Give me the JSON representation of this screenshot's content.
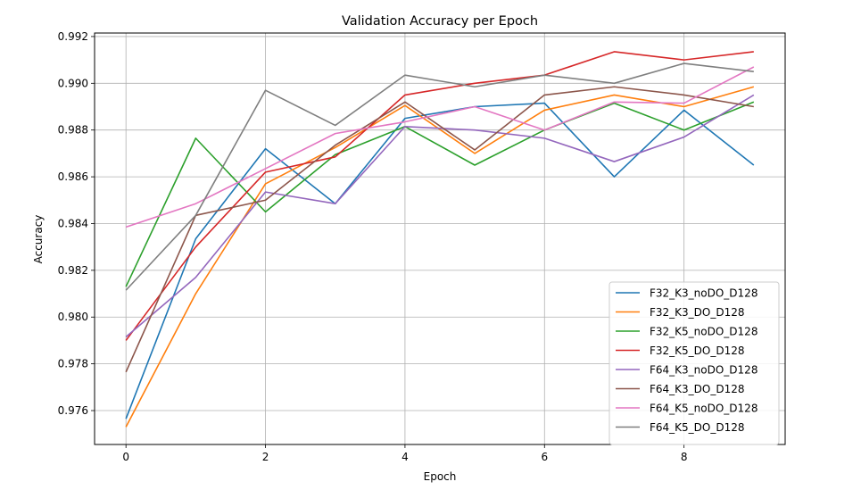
{
  "chart_data": {
    "type": "line",
    "title": "Validation Accuracy per Epoch",
    "xlabel": "Epoch",
    "ylabel": "Accuracy",
    "xlim": [
      -0.45,
      9.45
    ],
    "ylim": [
      0.97455,
      0.99215
    ],
    "x": [
      0,
      1,
      2,
      3,
      4,
      5,
      6,
      7,
      8,
      9
    ],
    "xticks": [
      0,
      2,
      4,
      6,
      8
    ],
    "yticks": [
      0.976,
      0.978,
      0.98,
      0.982,
      0.984,
      0.986,
      0.988,
      0.99,
      0.992
    ],
    "grid": true,
    "legend_position": "lower-right",
    "series": [
      {
        "name": "F32_K3_noDO_D128",
        "color": "#1f77b4",
        "values": [
          0.97565,
          0.98335,
          0.9872,
          0.98485,
          0.9885,
          0.989,
          0.98915,
          0.986,
          0.98885,
          0.9865
        ]
      },
      {
        "name": "F32_K3_DO_D128",
        "color": "#ff7f0e",
        "values": [
          0.9753,
          0.981,
          0.9857,
          0.98725,
          0.98905,
          0.987,
          0.98885,
          0.9895,
          0.989,
          0.98985
        ]
      },
      {
        "name": "F32_K5_noDO_D128",
        "color": "#2ca02c",
        "values": [
          0.9813,
          0.98765,
          0.9845,
          0.98695,
          0.98815,
          0.9865,
          0.988,
          0.98915,
          0.988,
          0.9892
        ]
      },
      {
        "name": "F32_K5_DO_D128",
        "color": "#d62728",
        "values": [
          0.979,
          0.983,
          0.9862,
          0.98685,
          0.9895,
          0.99,
          0.99035,
          0.99135,
          0.991,
          0.99135
        ]
      },
      {
        "name": "F64_K3_noDO_D128",
        "color": "#9467bd",
        "values": [
          0.97915,
          0.9817,
          0.98535,
          0.98485,
          0.98815,
          0.988,
          0.98765,
          0.98665,
          0.9877,
          0.9895
        ]
      },
      {
        "name": "F64_K3_DO_D128",
        "color": "#8c564b",
        "values": [
          0.97765,
          0.98435,
          0.985,
          0.98735,
          0.9892,
          0.98715,
          0.9895,
          0.98985,
          0.9895,
          0.989
        ]
      },
      {
        "name": "F64_K5_noDO_D128",
        "color": "#e377c2",
        "values": [
          0.98385,
          0.98485,
          0.98635,
          0.98785,
          0.98835,
          0.989,
          0.988,
          0.9892,
          0.98915,
          0.9907
        ]
      },
      {
        "name": "F64_K5_DO_D128",
        "color": "#7f7f7f",
        "values": [
          0.98115,
          0.98435,
          0.9897,
          0.9882,
          0.99035,
          0.98985,
          0.99035,
          0.99,
          0.99085,
          0.9905
        ]
      }
    ]
  }
}
